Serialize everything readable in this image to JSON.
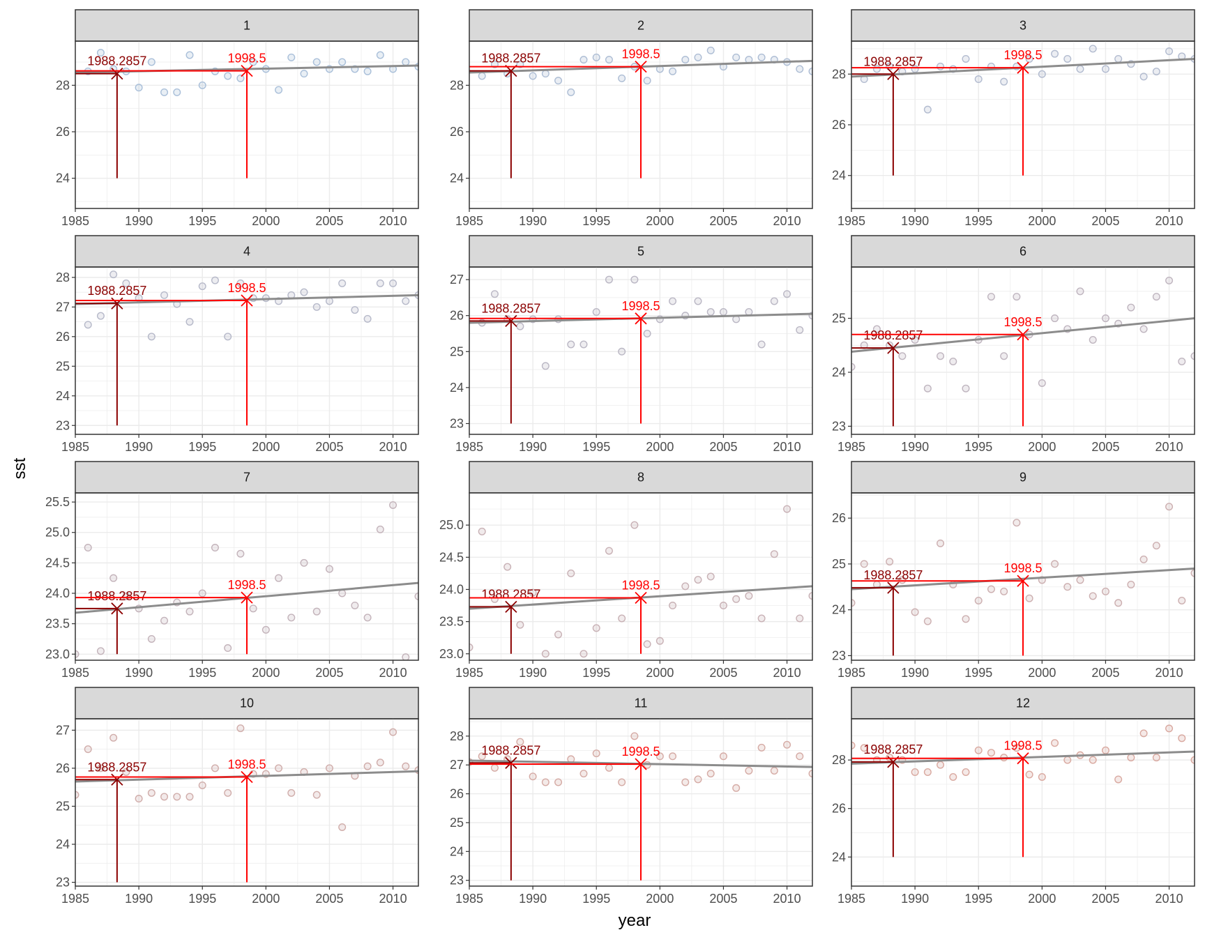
{
  "axis_titles": {
    "x": "year",
    "y": "sst"
  },
  "colors": {
    "mark_early": "#8b0000",
    "mark_late": "#ff0000",
    "trend_line": "#8c8c8c",
    "strip_fill": "#d9d9d9",
    "point_outline_start": "#a9bfd9",
    "point_outline_end": "#d9a9a0"
  },
  "chart_data": [
    {
      "type": "scatter",
      "panel": "1",
      "xlim": [
        1985,
        2012
      ],
      "ylim": [
        22.7,
        29.9
      ],
      "x_ticks": [
        1985,
        1990,
        1995,
        2000,
        2005,
        2010
      ],
      "y_ticks": [
        24,
        26,
        28
      ],
      "x": [
        1986,
        1987,
        1988,
        1989,
        1990,
        1991,
        1992,
        1993,
        1994,
        1995,
        1996,
        1997,
        1998,
        1999,
        2000,
        2001,
        2002,
        2003,
        2004,
        2005,
        2006,
        2007,
        2008,
        2009,
        2010,
        2011,
        2012
      ],
      "y": [
        28.6,
        29.4,
        28.7,
        28.6,
        27.9,
        29.0,
        27.7,
        27.7,
        29.3,
        28.0,
        28.6,
        28.4,
        28.3,
        29.0,
        28.7,
        27.8,
        29.2,
        28.5,
        29.0,
        28.7,
        29.0,
        28.7,
        28.6,
        29.3,
        28.7,
        29.0,
        28.8
      ],
      "trend": {
        "x": [
          1985,
          2012
        ],
        "y": [
          28.55,
          28.85
        ]
      },
      "markers": [
        {
          "label": "1988.2857",
          "x": 1988.2857,
          "y": 28.5
        },
        {
          "label": "1998.5",
          "x": 1998.5,
          "y": 28.62
        }
      ]
    },
    {
      "type": "scatter",
      "panel": "2",
      "xlim": [
        1985,
        2012
      ],
      "ylim": [
        22.7,
        29.9
      ],
      "x_ticks": [
        1985,
        1990,
        1995,
        2000,
        2005,
        2010
      ],
      "y_ticks": [
        24,
        26,
        28
      ],
      "x": [
        1986,
        1987,
        1988,
        1989,
        1990,
        1991,
        1992,
        1993,
        1994,
        1995,
        1996,
        1997,
        1998,
        1999,
        2000,
        2001,
        2002,
        2003,
        2004,
        2005,
        2006,
        2007,
        2008,
        2009,
        2010,
        2011,
        2012
      ],
      "y": [
        28.4,
        28.9,
        28.5,
        28.9,
        28.4,
        28.5,
        28.2,
        27.7,
        29.1,
        29.2,
        29.1,
        28.3,
        28.8,
        28.2,
        28.7,
        28.6,
        29.1,
        29.2,
        29.5,
        28.8,
        29.2,
        29.1,
        29.2,
        29.1,
        29.0,
        28.7,
        28.6
      ],
      "trend": {
        "x": [
          1985,
          2012
        ],
        "y": [
          28.55,
          29.05
        ]
      },
      "markers": [
        {
          "label": "1988.2857",
          "x": 1988.2857,
          "y": 28.62
        },
        {
          "label": "1998.5",
          "x": 1998.5,
          "y": 28.8
        }
      ]
    },
    {
      "type": "scatter",
      "panel": "3",
      "xlim": [
        1985,
        2012
      ],
      "ylim": [
        22.7,
        29.3
      ],
      "x_ticks": [
        1985,
        1990,
        1995,
        2000,
        2005,
        2010
      ],
      "y_ticks": [
        24,
        26,
        28
      ],
      "x": [
        1986,
        1987,
        1988,
        1989,
        1990,
        1991,
        1992,
        1993,
        1994,
        1995,
        1996,
        1997,
        1998,
        1999,
        2000,
        2001,
        2002,
        2003,
        2004,
        2005,
        2006,
        2007,
        2008,
        2009,
        2010,
        2011,
        2012
      ],
      "y": [
        27.8,
        28.2,
        28.3,
        28.1,
        28.2,
        26.6,
        28.3,
        28.2,
        28.6,
        27.8,
        28.3,
        27.7,
        28.3,
        28.6,
        28.0,
        28.8,
        28.6,
        28.2,
        29.0,
        28.2,
        28.6,
        28.4,
        27.9,
        28.1,
        28.9,
        28.7,
        28.6
      ],
      "trend": {
        "x": [
          1985,
          2012
        ],
        "y": [
          27.9,
          28.6
        ]
      },
      "markers": [
        {
          "label": "1988.2857",
          "x": 1988.2857,
          "y": 28.0
        },
        {
          "label": "1998.5",
          "x": 1998.5,
          "y": 28.25
        }
      ]
    },
    {
      "type": "scatter",
      "panel": "4",
      "xlim": [
        1985,
        2012
      ],
      "ylim": [
        22.7,
        28.35
      ],
      "x_ticks": [
        1985,
        1990,
        1995,
        2000,
        2005,
        2010
      ],
      "y_ticks": [
        23,
        24,
        25,
        26,
        27,
        28
      ],
      "x": [
        1986,
        1987,
        1988,
        1989,
        1990,
        1991,
        1992,
        1993,
        1994,
        1995,
        1996,
        1997,
        1998,
        1999,
        2000,
        2001,
        2002,
        2003,
        2004,
        2005,
        2006,
        2007,
        2008,
        2009,
        2010,
        2011,
        2012
      ],
      "y": [
        26.4,
        26.7,
        28.1,
        27.8,
        27.3,
        26.0,
        27.4,
        27.1,
        26.5,
        27.7,
        27.9,
        26.0,
        27.8,
        27.3,
        27.3,
        27.2,
        27.4,
        27.5,
        27.0,
        27.2,
        27.8,
        26.9,
        26.6,
        27.8,
        27.8,
        27.2,
        27.4
      ],
      "trend": {
        "x": [
          1985,
          2012
        ],
        "y": [
          27.1,
          27.4
        ]
      },
      "markers": [
        {
          "label": "1988.2857",
          "x": 1988.2857,
          "y": 27.12
        },
        {
          "label": "1998.5",
          "x": 1998.5,
          "y": 27.22
        }
      ]
    },
    {
      "type": "scatter",
      "panel": "5",
      "xlim": [
        1985,
        2012
      ],
      "ylim": [
        22.7,
        27.35
      ],
      "x_ticks": [
        1985,
        1990,
        1995,
        2000,
        2005,
        2010
      ],
      "y_ticks": [
        23,
        24,
        25,
        26,
        27
      ],
      "x": [
        1986,
        1987,
        1988,
        1989,
        1990,
        1991,
        1992,
        1993,
        1994,
        1995,
        1996,
        1997,
        1998,
        1999,
        2000,
        2001,
        2002,
        2003,
        2004,
        2005,
        2006,
        2007,
        2008,
        2009,
        2010,
        2011,
        2012
      ],
      "y": [
        25.8,
        26.6,
        25.9,
        25.7,
        25.9,
        24.6,
        25.9,
        25.2,
        25.2,
        26.1,
        27.0,
        25.0,
        27.0,
        25.5,
        25.9,
        26.4,
        26.0,
        26.4,
        26.1,
        26.1,
        25.9,
        26.1,
        25.2,
        26.4,
        26.6,
        25.6,
        26.0
      ],
      "trend": {
        "x": [
          1985,
          2012
        ],
        "y": [
          25.8,
          26.05
        ]
      },
      "markers": [
        {
          "label": "1988.2857",
          "x": 1988.2857,
          "y": 25.85
        },
        {
          "label": "1998.5",
          "x": 1998.5,
          "y": 25.92
        }
      ]
    },
    {
      "type": "scatter",
      "panel": "6",
      "xlim": [
        1985,
        2012
      ],
      "ylim": [
        22.85,
        25.95
      ],
      "x_ticks": [
        1985,
        1990,
        1995,
        2000,
        2005,
        2010
      ],
      "y_ticks": [
        23,
        24,
        25
      ],
      "x": [
        1985,
        1986,
        1987,
        1988,
        1989,
        1990,
        1991,
        1992,
        1993,
        1994,
        1995,
        1996,
        1997,
        1998,
        1999,
        2000,
        2001,
        2002,
        2003,
        2004,
        2005,
        2006,
        2007,
        2008,
        2009,
        2010,
        2011,
        2012
      ],
      "y": [
        24.1,
        24.5,
        24.8,
        24.5,
        24.3,
        24.6,
        23.7,
        24.3,
        24.2,
        23.7,
        24.6,
        25.4,
        24.3,
        25.4,
        24.7,
        23.8,
        25.0,
        24.8,
        25.5,
        24.6,
        25.0,
        24.9,
        25.2,
        24.8,
        25.4,
        25.7,
        24.2,
        24.3
      ],
      "trend": {
        "x": [
          1985,
          2012
        ],
        "y": [
          24.38,
          25.0
        ]
      },
      "markers": [
        {
          "label": "1988.2857",
          "x": 1988.2857,
          "y": 24.45
        },
        {
          "label": "1998.5",
          "x": 1998.5,
          "y": 24.7
        }
      ]
    },
    {
      "type": "scatter",
      "panel": "7",
      "xlim": [
        1985,
        2012
      ],
      "ylim": [
        22.9,
        25.65
      ],
      "x_ticks": [
        1985,
        1990,
        1995,
        2000,
        2005,
        2010
      ],
      "y_ticks": [
        23.0,
        23.5,
        24.0,
        24.5,
        25.0,
        25.5
      ],
      "x": [
        1985,
        1986,
        1987,
        1988,
        1989,
        1990,
        1991,
        1992,
        1993,
        1994,
        1995,
        1996,
        1997,
        1998,
        1999,
        2000,
        2001,
        2002,
        2003,
        2004,
        2005,
        2006,
        2007,
        2008,
        2009,
        2010,
        2011,
        2012
      ],
      "y": [
        23.0,
        24.75,
        23.05,
        24.25,
        23.95,
        23.75,
        23.25,
        23.55,
        23.85,
        23.7,
        24.0,
        24.75,
        23.1,
        24.65,
        23.75,
        23.4,
        24.25,
        23.6,
        24.5,
        23.7,
        24.4,
        24.0,
        23.8,
        23.6,
        25.05,
        25.45,
        22.95,
        23.95
      ],
      "trend": {
        "x": [
          1985,
          2012
        ],
        "y": [
          23.68,
          24.17
        ]
      },
      "markers": [
        {
          "label": "1988.2857",
          "x": 1988.2857,
          "y": 23.75
        },
        {
          "label": "1998.5",
          "x": 1998.5,
          "y": 23.93
        }
      ]
    },
    {
      "type": "scatter",
      "panel": "8",
      "xlim": [
        1985,
        2012
      ],
      "ylim": [
        22.9,
        25.5
      ],
      "x_ticks": [
        1985,
        1990,
        1995,
        2000,
        2005,
        2010
      ],
      "y_ticks": [
        23.0,
        23.5,
        24.0,
        24.5,
        25.0
      ],
      "x": [
        1985,
        1986,
        1987,
        1988,
        1989,
        1990,
        1991,
        1992,
        1993,
        1994,
        1995,
        1996,
        1997,
        1998,
        1999,
        2000,
        2001,
        2002,
        2003,
        2004,
        2005,
        2006,
        2007,
        2008,
        2009,
        2010,
        2011,
        2012
      ],
      "y": [
        23.1,
        24.9,
        23.85,
        24.35,
        23.45,
        23.95,
        23.0,
        23.3,
        24.25,
        23.0,
        23.4,
        24.6,
        23.55,
        25.0,
        23.15,
        23.2,
        23.75,
        24.05,
        24.15,
        24.2,
        23.75,
        23.85,
        23.9,
        23.55,
        24.55,
        25.25,
        23.55,
        23.9
      ],
      "trend": {
        "x": [
          1985,
          2012
        ],
        "y": [
          23.7,
          24.05
        ]
      },
      "markers": [
        {
          "label": "1988.2857",
          "x": 1988.2857,
          "y": 23.73
        },
        {
          "label": "1998.5",
          "x": 1998.5,
          "y": 23.87
        }
      ]
    },
    {
      "type": "scatter",
      "panel": "9",
      "xlim": [
        1985,
        2012
      ],
      "ylim": [
        22.9,
        26.55
      ],
      "x_ticks": [
        1985,
        1990,
        1995,
        2000,
        2005,
        2010
      ],
      "y_ticks": [
        23,
        24,
        25,
        26
      ],
      "x": [
        1985,
        1986,
        1987,
        1988,
        1989,
        1990,
        1991,
        1992,
        1993,
        1994,
        1995,
        1996,
        1997,
        1998,
        1999,
        2000,
        2001,
        2002,
        2003,
        2004,
        2005,
        2006,
        2007,
        2008,
        2009,
        2010,
        2011,
        2012
      ],
      "y": [
        24.15,
        25.0,
        24.55,
        25.05,
        24.65,
        23.95,
        23.75,
        25.45,
        24.55,
        23.8,
        24.2,
        24.45,
        24.4,
        25.9,
        24.25,
        24.65,
        25.0,
        24.5,
        24.65,
        24.3,
        24.4,
        24.15,
        24.55,
        25.1,
        25.4,
        26.25,
        24.2,
        24.8
      ],
      "trend": {
        "x": [
          1985,
          2012
        ],
        "y": [
          24.45,
          24.9
        ]
      },
      "markers": [
        {
          "label": "1988.2857",
          "x": 1988.2857,
          "y": 24.48
        },
        {
          "label": "1998.5",
          "x": 1998.5,
          "y": 24.63
        }
      ]
    },
    {
      "type": "scatter",
      "panel": "10",
      "xlim": [
        1985,
        2012
      ],
      "ylim": [
        22.9,
        27.3
      ],
      "x_ticks": [
        1985,
        1990,
        1995,
        2000,
        2005,
        2010
      ],
      "y_ticks": [
        23,
        24,
        25,
        26,
        27
      ],
      "x": [
        1985,
        1986,
        1987,
        1988,
        1989,
        1990,
        1991,
        1992,
        1993,
        1994,
        1995,
        1996,
        1997,
        1998,
        1999,
        2000,
        2001,
        2002,
        2003,
        2004,
        2005,
        2006,
        2007,
        2008,
        2009,
        2010,
        2011,
        2012
      ],
      "y": [
        25.3,
        26.5,
        26.0,
        26.8,
        25.9,
        25.2,
        25.35,
        25.25,
        25.25,
        25.25,
        25.55,
        26.0,
        25.35,
        27.05,
        25.85,
        25.85,
        26.0,
        25.35,
        25.9,
        25.3,
        26.0,
        24.45,
        25.8,
        26.05,
        26.15,
        26.95,
        26.05,
        25.95
      ],
      "trend": {
        "x": [
          1985,
          2012
        ],
        "y": [
          25.65,
          25.92
        ]
      },
      "markers": [
        {
          "label": "1988.2857",
          "x": 1988.2857,
          "y": 25.7
        },
        {
          "label": "1998.5",
          "x": 1998.5,
          "y": 25.77
        }
      ]
    },
    {
      "type": "scatter",
      "panel": "11",
      "xlim": [
        1985,
        2012
      ],
      "ylim": [
        22.8,
        28.6
      ],
      "x_ticks": [
        1985,
        1990,
        1995,
        2000,
        2005,
        2010
      ],
      "y_ticks": [
        23,
        24,
        25,
        26,
        27,
        28
      ],
      "x": [
        1985,
        1986,
        1987,
        1988,
        1989,
        1990,
        1991,
        1992,
        1993,
        1994,
        1995,
        1996,
        1997,
        1998,
        1999,
        2000,
        2001,
        2002,
        2003,
        2004,
        2005,
        2006,
        2007,
        2008,
        2009,
        2010,
        2011,
        2012
      ],
      "y": [
        27.1,
        27.3,
        26.9,
        27.2,
        27.8,
        26.6,
        26.4,
        26.4,
        27.2,
        26.7,
        27.4,
        26.9,
        26.4,
        28.0,
        27.0,
        27.3,
        27.3,
        26.4,
        26.5,
        26.7,
        27.3,
        26.2,
        26.8,
        27.6,
        26.8,
        27.7,
        27.3,
        26.7
      ],
      "trend": {
        "x": [
          1985,
          2012
        ],
        "y": [
          27.15,
          26.93
        ]
      },
      "markers": [
        {
          "label": "1988.2857",
          "x": 1988.2857,
          "y": 27.07
        },
        {
          "label": "1998.5",
          "x": 1998.5,
          "y": 27.03
        }
      ]
    },
    {
      "type": "scatter",
      "panel": "12",
      "xlim": [
        1985,
        2012
      ],
      "ylim": [
        22.8,
        29.7
      ],
      "x_ticks": [
        1985,
        1990,
        1995,
        2000,
        2005,
        2010
      ],
      "y_ticks": [
        24,
        26,
        28
      ],
      "x": [
        1985,
        1986,
        1987,
        1988,
        1989,
        1990,
        1991,
        1992,
        1993,
        1994,
        1995,
        1996,
        1997,
        1998,
        1999,
        2000,
        2001,
        2002,
        2003,
        2004,
        2005,
        2006,
        2007,
        2008,
        2009,
        2010,
        2011,
        2012
      ],
      "y": [
        28.6,
        28.5,
        28.0,
        28.1,
        28.0,
        27.5,
        27.5,
        27.8,
        27.3,
        27.5,
        28.4,
        28.3,
        28.1,
        28.5,
        27.4,
        27.3,
        28.7,
        28.0,
        28.2,
        28.0,
        28.4,
        27.2,
        28.1,
        29.1,
        28.1,
        29.3,
        28.9,
        28.0
      ],
      "trend": {
        "x": [
          1985,
          2012
        ],
        "y": [
          27.85,
          28.35
        ]
      },
      "markers": [
        {
          "label": "1988.2857",
          "x": 1988.2857,
          "y": 27.92
        },
        {
          "label": "1998.5",
          "x": 1998.5,
          "y": 28.07
        }
      ]
    }
  ]
}
